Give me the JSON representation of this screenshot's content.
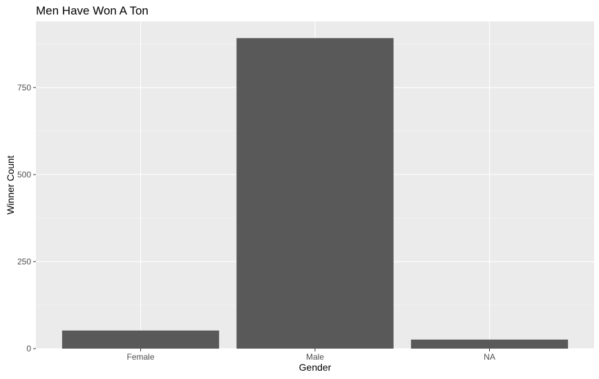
{
  "chart_data": {
    "type": "bar",
    "title": "Men Have Won A Ton",
    "xlabel": "Gender",
    "ylabel": "Winner Count",
    "categories": [
      "Female",
      "Male",
      "NA"
    ],
    "values": [
      52,
      892,
      26
    ],
    "ylim": [
      0,
      940
    ],
    "yticks": [
      0,
      250,
      500,
      750
    ],
    "grid": true,
    "legend": "none",
    "colors": {
      "bar": "#595959",
      "panel": "#ebebeb",
      "grid_major": "#ffffff",
      "grid_minor": "#f5f5f5",
      "tick_text": "#4d4d4d",
      "tick_mark": "#333333"
    }
  }
}
